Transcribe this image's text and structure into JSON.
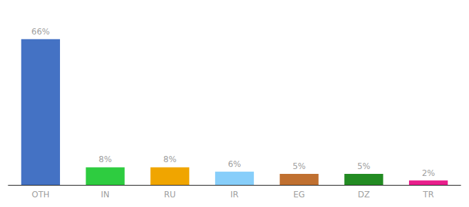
{
  "chart_data": {
    "type": "bar",
    "categories": [
      "OTH",
      "IN",
      "RU",
      "IR",
      "EG",
      "DZ",
      "TR"
    ],
    "values": [
      66,
      8,
      8,
      6,
      5,
      5,
      2
    ],
    "value_labels": [
      "66%",
      "8%",
      "8%",
      "6%",
      "5%",
      "5%",
      "2%"
    ],
    "data_labels": true,
    "colors": [
      "#4472c4",
      "#2ecc40",
      "#f0a500",
      "#87cefa",
      "#c07030",
      "#228b22",
      "#e91e8c"
    ],
    "ylim": [
      0,
      75
    ],
    "tick_labels": "x",
    "grid": false
  }
}
